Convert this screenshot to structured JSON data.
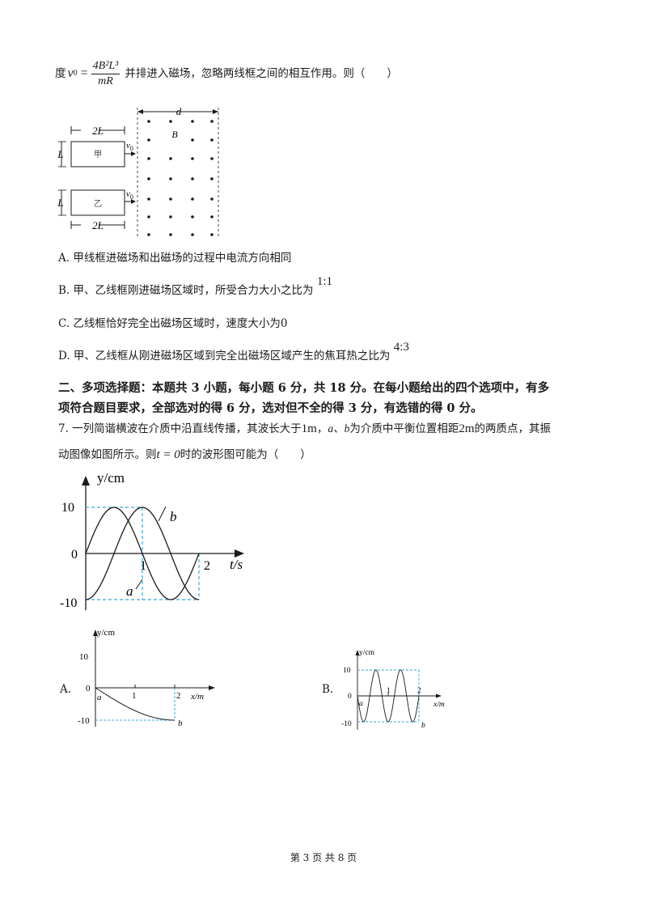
{
  "intro": {
    "prefix": "度",
    "v_symbol": "v",
    "v_sub": "0",
    "equals": "=",
    "frac_num": "4B²L³",
    "frac_den": "mR",
    "suffix": "并排进入磁场，忽略两线框之间的相互作用。则（　　）"
  },
  "fig1": {
    "d_label": "d",
    "B_label": "B",
    "jia_width": "2L",
    "yi_width": "2L",
    "height_label": "L",
    "jia_label": "甲",
    "yi_label": "乙",
    "v_symbol": "v",
    "v_sub": "0"
  },
  "q6_options": {
    "A": "A.  甲线框进磁场和出磁场的过程中电流方向相同",
    "B": "B.  甲、乙线框刚进磁场区域时，所受合力大小之比为",
    "B_ratio": "1:1",
    "C": "C.  乙线框恰好完全出磁场区域时，速度大小为0",
    "D": "D.  甲、乙线框从刚进磁场区域到完全出磁场区域产生的焦耳热之比为",
    "D_ratio": "4:3"
  },
  "section2": {
    "line1": "二、多项选择题：本题共 3 小题，每小题 6 分，共 18 分。在每小题给出的四个选项中，有多",
    "line2": "项符合题目要求，全部选对的得 6 分，选对但不全的得 3 分，有选错的得 0 分。"
  },
  "q7": {
    "line1_a": "7. 一列简谐横波在介质中沿直线传播，其波长大于",
    "line1_b": "1m",
    "line1_c": "，",
    "line1_d": "a、b",
    "line1_e": "为介质中平衡位置相距",
    "line1_f": "2m",
    "line1_g": "的两质点，其振",
    "line2_a": "动图像如图所示。则",
    "line2_b": "t = 0",
    "line2_c": "时的波形图可能为（　　）"
  },
  "vib_graph": {
    "y_axis_label": "y/cm",
    "x_axis_label": "t/s",
    "tick_y_top": "10",
    "tick_y_zero": "0",
    "tick_y_bottom": "-10",
    "tick_x1": "1",
    "tick_x2": "2",
    "curve_a_label": "a",
    "curve_b_label": "b"
  },
  "optA": {
    "label": "A.",
    "y_axis_label": "y/cm",
    "x_axis_label": "x/m",
    "tick_y_top": "10",
    "tick_y_zero": "0",
    "tick_y_bottom": "-10",
    "tick_x1": "1",
    "tick_x2": "2",
    "point_a": "a",
    "point_b": "b"
  },
  "optB": {
    "label": "B.",
    "y_axis_label": "y/cm",
    "x_axis_label": "x/m",
    "tick_y_top": "10",
    "tick_y_zero": "0",
    "tick_y_bottom": "-10",
    "tick_x1": "1",
    "tick_x2": "2",
    "point_a": "a",
    "point_b": "b"
  },
  "footer": "第 3 页 共 8 页",
  "colors": {
    "text": "#1a1a1a",
    "dashed_guides": "#3aa6d8"
  }
}
